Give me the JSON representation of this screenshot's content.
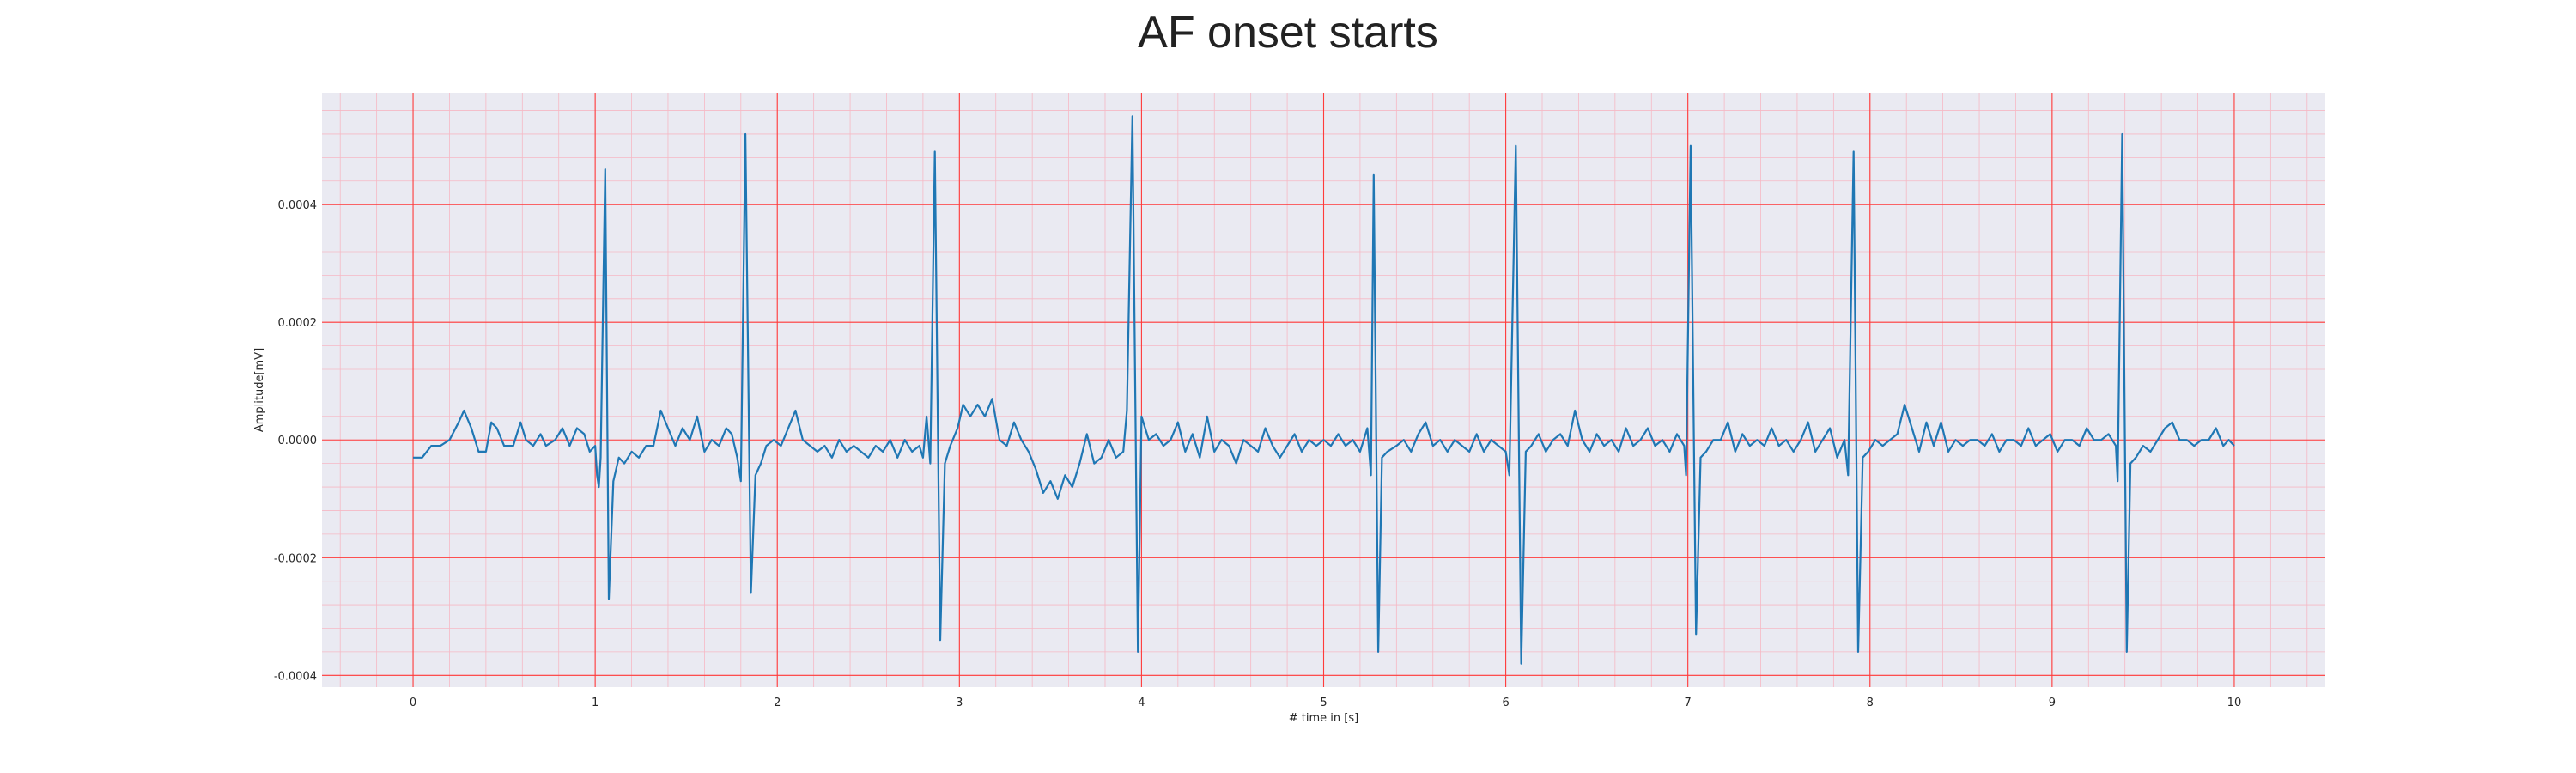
{
  "chart_data": {
    "type": "line",
    "title": "AF onset starts",
    "xlabel": "# time in [s]",
    "ylabel": "Amplitude[mV]",
    "xlim": [
      -0.5,
      10.5
    ],
    "ylim": [
      -0.00042,
      0.00059
    ],
    "x_ticks": [
      0,
      1,
      2,
      3,
      4,
      5,
      6,
      7,
      8,
      9,
      10
    ],
    "x_tick_labels": [
      "0",
      "1",
      "2",
      "3",
      "4",
      "5",
      "6",
      "7",
      "8",
      "9",
      "10"
    ],
    "y_ticks": [
      -0.0004,
      -0.0002,
      0.0,
      0.0002,
      0.0004
    ],
    "y_tick_labels": [
      "-0.0004",
      "-0.0002",
      "0.0000",
      "0.0002",
      "0.0004"
    ],
    "grid": true,
    "minor_grid": true,
    "colors": {
      "plot_background": "#eaeaf2",
      "major_grid": "#ff3b3b",
      "minor_grid": "#f6b8c4",
      "line": "#1f77b4"
    },
    "series": [
      {
        "points": [
          [
            0.0,
            -3e-05
          ],
          [
            0.05,
            -3e-05
          ],
          [
            0.1,
            -1e-05
          ],
          [
            0.15,
            -1e-05
          ],
          [
            0.2,
            0.0
          ],
          [
            0.25,
            3e-05
          ],
          [
            0.28,
            5e-05
          ],
          [
            0.32,
            2e-05
          ],
          [
            0.36,
            -2e-05
          ],
          [
            0.4,
            -2e-05
          ],
          [
            0.43,
            3e-05
          ],
          [
            0.46,
            2e-05
          ],
          [
            0.5,
            -1e-05
          ],
          [
            0.55,
            -1e-05
          ],
          [
            0.59,
            3e-05
          ],
          [
            0.62,
            0.0
          ],
          [
            0.66,
            -1e-05
          ],
          [
            0.7,
            1e-05
          ],
          [
            0.73,
            -1e-05
          ],
          [
            0.78,
            0.0
          ],
          [
            0.82,
            2e-05
          ],
          [
            0.86,
            -1e-05
          ],
          [
            0.9,
            2e-05
          ],
          [
            0.94,
            1e-05
          ],
          [
            0.97,
            -2e-05
          ],
          [
            1.0,
            -1e-05
          ],
          [
            1.01,
            -6e-05
          ],
          [
            1.02,
            -8e-05
          ],
          [
            1.03,
            -3e-05
          ],
          [
            1.055,
            0.00046
          ],
          [
            1.075,
            -0.00027
          ],
          [
            1.1,
            -7e-05
          ],
          [
            1.13,
            -3e-05
          ],
          [
            1.16,
            -4e-05
          ],
          [
            1.2,
            -2e-05
          ],
          [
            1.24,
            -3e-05
          ],
          [
            1.28,
            -1e-05
          ],
          [
            1.32,
            -1e-05
          ],
          [
            1.36,
            5e-05
          ],
          [
            1.4,
            2e-05
          ],
          [
            1.44,
            -1e-05
          ],
          [
            1.48,
            2e-05
          ],
          [
            1.52,
            0.0
          ],
          [
            1.56,
            4e-05
          ],
          [
            1.6,
            -2e-05
          ],
          [
            1.64,
            0.0
          ],
          [
            1.68,
            -1e-05
          ],
          [
            1.72,
            2e-05
          ],
          [
            1.75,
            1e-05
          ],
          [
            1.78,
            -3e-05
          ],
          [
            1.8,
            -7e-05
          ],
          [
            1.825,
            0.00052
          ],
          [
            1.855,
            -0.00026
          ],
          [
            1.88,
            -6e-05
          ],
          [
            1.91,
            -4e-05
          ],
          [
            1.94,
            -1e-05
          ],
          [
            1.98,
            0.0
          ],
          [
            2.02,
            -1e-05
          ],
          [
            2.06,
            2e-05
          ],
          [
            2.1,
            5e-05
          ],
          [
            2.14,
            0.0
          ],
          [
            2.18,
            -1e-05
          ],
          [
            2.22,
            -2e-05
          ],
          [
            2.26,
            -1e-05
          ],
          [
            2.3,
            -3e-05
          ],
          [
            2.34,
            0.0
          ],
          [
            2.38,
            -2e-05
          ],
          [
            2.42,
            -1e-05
          ],
          [
            2.46,
            -2e-05
          ],
          [
            2.5,
            -3e-05
          ],
          [
            2.54,
            -1e-05
          ],
          [
            2.58,
            -2e-05
          ],
          [
            2.62,
            0.0
          ],
          [
            2.66,
            -3e-05
          ],
          [
            2.7,
            0.0
          ],
          [
            2.74,
            -2e-05
          ],
          [
            2.78,
            -1e-05
          ],
          [
            2.8,
            -3e-05
          ],
          [
            2.82,
            4e-05
          ],
          [
            2.84,
            -4e-05
          ],
          [
            2.865,
            0.00049
          ],
          [
            2.895,
            -0.00034
          ],
          [
            2.92,
            -4e-05
          ],
          [
            2.95,
            -1e-05
          ],
          [
            2.99,
            2e-05
          ],
          [
            3.02,
            6e-05
          ],
          [
            3.06,
            4e-05
          ],
          [
            3.1,
            6e-05
          ],
          [
            3.14,
            4e-05
          ],
          [
            3.18,
            7e-05
          ],
          [
            3.22,
            0.0
          ],
          [
            3.26,
            -1e-05
          ],
          [
            3.3,
            3e-05
          ],
          [
            3.34,
            0.0
          ],
          [
            3.38,
            -2e-05
          ],
          [
            3.42,
            -5e-05
          ],
          [
            3.46,
            -9e-05
          ],
          [
            3.5,
            -7e-05
          ],
          [
            3.54,
            -0.0001
          ],
          [
            3.58,
            -6e-05
          ],
          [
            3.62,
            -8e-05
          ],
          [
            3.66,
            -4e-05
          ],
          [
            3.7,
            1e-05
          ],
          [
            3.74,
            -4e-05
          ],
          [
            3.78,
            -3e-05
          ],
          [
            3.82,
            0.0
          ],
          [
            3.86,
            -3e-05
          ],
          [
            3.9,
            -2e-05
          ],
          [
            3.92,
            5e-05
          ],
          [
            3.95,
            0.00055
          ],
          [
            3.98,
            -0.00036
          ],
          [
            4.0,
            4e-05
          ],
          [
            4.04,
            0.0
          ],
          [
            4.08,
            1e-05
          ],
          [
            4.12,
            -1e-05
          ],
          [
            4.16,
            0.0
          ],
          [
            4.2,
            3e-05
          ],
          [
            4.24,
            -2e-05
          ],
          [
            4.28,
            1e-05
          ],
          [
            4.32,
            -3e-05
          ],
          [
            4.36,
            4e-05
          ],
          [
            4.4,
            -2e-05
          ],
          [
            4.44,
            0.0
          ],
          [
            4.48,
            -1e-05
          ],
          [
            4.52,
            -4e-05
          ],
          [
            4.56,
            0.0
          ],
          [
            4.6,
            -1e-05
          ],
          [
            4.64,
            -2e-05
          ],
          [
            4.68,
            2e-05
          ],
          [
            4.72,
            -1e-05
          ],
          [
            4.76,
            -3e-05
          ],
          [
            4.8,
            -1e-05
          ],
          [
            4.84,
            1e-05
          ],
          [
            4.88,
            -2e-05
          ],
          [
            4.92,
            0.0
          ],
          [
            4.96,
            -1e-05
          ],
          [
            5.0,
            0.0
          ],
          [
            5.04,
            -1e-05
          ],
          [
            5.08,
            1e-05
          ],
          [
            5.12,
            -1e-05
          ],
          [
            5.16,
            0.0
          ],
          [
            5.2,
            -2e-05
          ],
          [
            5.24,
            2e-05
          ],
          [
            5.26,
            -6e-05
          ],
          [
            5.275,
            0.00045
          ],
          [
            5.3,
            -0.00036
          ],
          [
            5.32,
            -3e-05
          ],
          [
            5.35,
            -2e-05
          ],
          [
            5.4,
            -1e-05
          ],
          [
            5.44,
            0.0
          ],
          [
            5.48,
            -2e-05
          ],
          [
            5.52,
            1e-05
          ],
          [
            5.56,
            3e-05
          ],
          [
            5.6,
            -1e-05
          ],
          [
            5.64,
            0.0
          ],
          [
            5.68,
            -2e-05
          ],
          [
            5.72,
            0.0
          ],
          [
            5.76,
            -1e-05
          ],
          [
            5.8,
            -2e-05
          ],
          [
            5.84,
            1e-05
          ],
          [
            5.88,
            -2e-05
          ],
          [
            5.92,
            0.0
          ],
          [
            5.96,
            -1e-05
          ],
          [
            6.0,
            -2e-05
          ],
          [
            6.02,
            -6e-05
          ],
          [
            6.055,
            0.0005
          ],
          [
            6.085,
            -0.00038
          ],
          [
            6.11,
            -2e-05
          ],
          [
            6.14,
            -1e-05
          ],
          [
            6.18,
            1e-05
          ],
          [
            6.22,
            -2e-05
          ],
          [
            6.26,
            0.0
          ],
          [
            6.3,
            1e-05
          ],
          [
            6.34,
            -1e-05
          ],
          [
            6.38,
            5e-05
          ],
          [
            6.42,
            0.0
          ],
          [
            6.46,
            -2e-05
          ],
          [
            6.5,
            1e-05
          ],
          [
            6.54,
            -1e-05
          ],
          [
            6.58,
            0.0
          ],
          [
            6.62,
            -2e-05
          ],
          [
            6.66,
            2e-05
          ],
          [
            6.7,
            -1e-05
          ],
          [
            6.74,
            0.0
          ],
          [
            6.78,
            2e-05
          ],
          [
            6.82,
            -1e-05
          ],
          [
            6.86,
            0.0
          ],
          [
            6.9,
            -2e-05
          ],
          [
            6.94,
            1e-05
          ],
          [
            6.98,
            -1e-05
          ],
          [
            6.99,
            -6e-05
          ],
          [
            7.015,
            0.0005
          ],
          [
            7.045,
            -0.00033
          ],
          [
            7.07,
            -3e-05
          ],
          [
            7.1,
            -2e-05
          ],
          [
            7.14,
            0.0
          ],
          [
            7.18,
            0.0
          ],
          [
            7.22,
            3e-05
          ],
          [
            7.26,
            -2e-05
          ],
          [
            7.3,
            1e-05
          ],
          [
            7.34,
            -1e-05
          ],
          [
            7.38,
            0.0
          ],
          [
            7.42,
            -1e-05
          ],
          [
            7.46,
            2e-05
          ],
          [
            7.5,
            -1e-05
          ],
          [
            7.54,
            0.0
          ],
          [
            7.58,
            -2e-05
          ],
          [
            7.62,
            0.0
          ],
          [
            7.66,
            3e-05
          ],
          [
            7.7,
            -2e-05
          ],
          [
            7.74,
            0.0
          ],
          [
            7.78,
            2e-05
          ],
          [
            7.82,
            -3e-05
          ],
          [
            7.86,
            0.0
          ],
          [
            7.88,
            -6e-05
          ],
          [
            7.91,
            0.00049
          ],
          [
            7.935,
            -0.00036
          ],
          [
            7.96,
            -3e-05
          ],
          [
            7.99,
            -2e-05
          ],
          [
            8.03,
            0.0
          ],
          [
            8.07,
            -1e-05
          ],
          [
            8.11,
            0.0
          ],
          [
            8.15,
            1e-05
          ],
          [
            8.19,
            6e-05
          ],
          [
            8.23,
            2e-05
          ],
          [
            8.27,
            -2e-05
          ],
          [
            8.31,
            3e-05
          ],
          [
            8.35,
            -1e-05
          ],
          [
            8.39,
            3e-05
          ],
          [
            8.43,
            -2e-05
          ],
          [
            8.47,
            0.0
          ],
          [
            8.51,
            -1e-05
          ],
          [
            8.55,
            0.0
          ],
          [
            8.59,
            0.0
          ],
          [
            8.63,
            -1e-05
          ],
          [
            8.67,
            1e-05
          ],
          [
            8.71,
            -2e-05
          ],
          [
            8.75,
            0.0
          ],
          [
            8.79,
            0.0
          ],
          [
            8.83,
            -1e-05
          ],
          [
            8.87,
            2e-05
          ],
          [
            8.91,
            -1e-05
          ],
          [
            8.95,
            0.0
          ],
          [
            8.99,
            1e-05
          ],
          [
            9.03,
            -2e-05
          ],
          [
            9.07,
            0.0
          ],
          [
            9.11,
            0.0
          ],
          [
            9.15,
            -1e-05
          ],
          [
            9.19,
            2e-05
          ],
          [
            9.23,
            0.0
          ],
          [
            9.27,
            0.0
          ],
          [
            9.31,
            1e-05
          ],
          [
            9.35,
            -1e-05
          ],
          [
            9.36,
            -7e-05
          ],
          [
            9.385,
            0.00052
          ],
          [
            9.41,
            -0.00036
          ],
          [
            9.43,
            -4e-05
          ],
          [
            9.46,
            -3e-05
          ],
          [
            9.5,
            -1e-05
          ],
          [
            9.54,
            -2e-05
          ],
          [
            9.58,
            0.0
          ],
          [
            9.62,
            2e-05
          ],
          [
            9.66,
            3e-05
          ],
          [
            9.7,
            0.0
          ],
          [
            9.74,
            0.0
          ],
          [
            9.78,
            -1e-05
          ],
          [
            9.82,
            0.0
          ],
          [
            9.86,
            0.0
          ],
          [
            9.9,
            2e-05
          ],
          [
            9.94,
            -1e-05
          ],
          [
            9.97,
            0.0
          ],
          [
            10.0,
            -1e-05
          ]
        ]
      }
    ]
  }
}
